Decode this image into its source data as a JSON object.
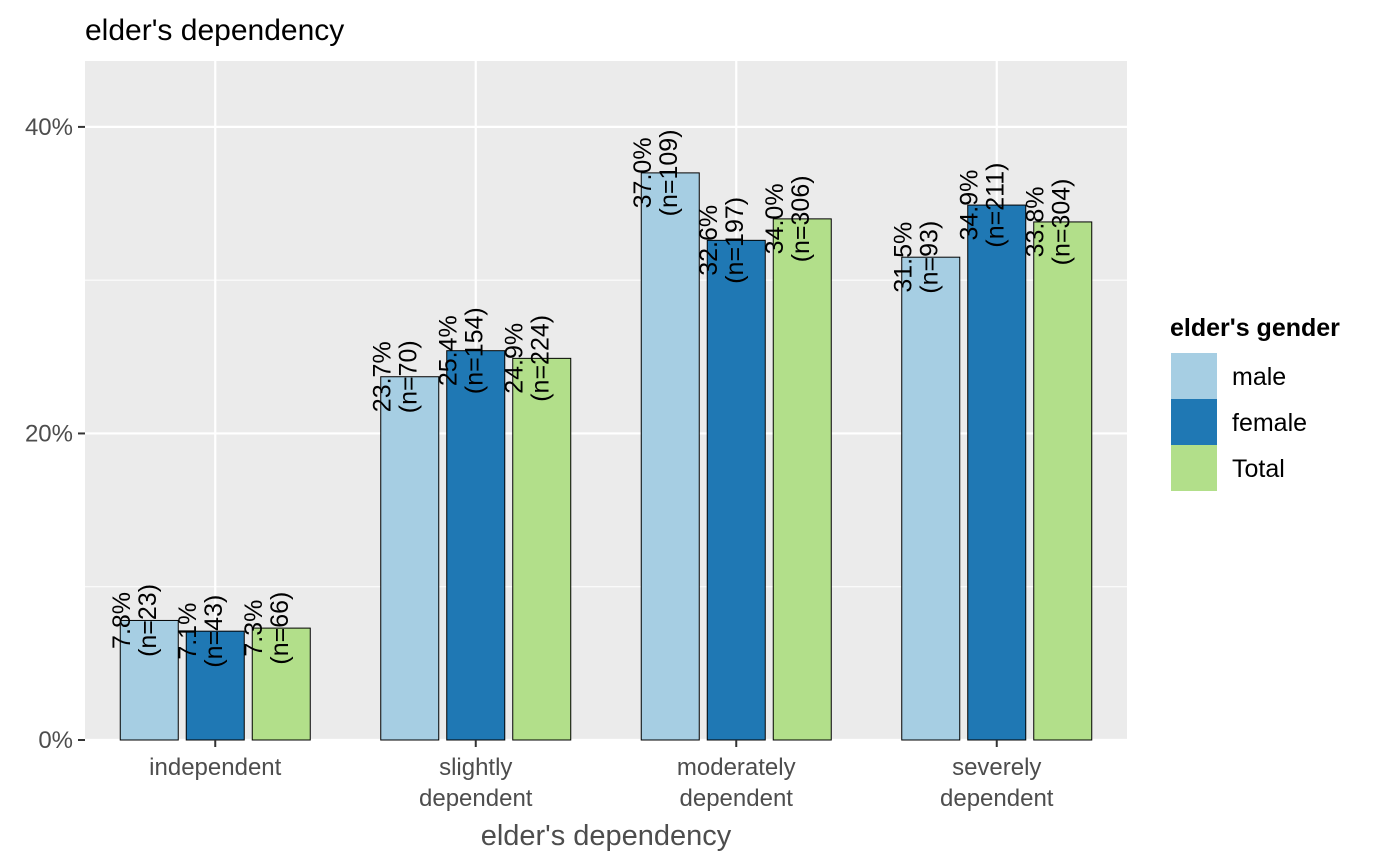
{
  "chart_data": {
    "type": "bar",
    "title": "elder's dependency",
    "xlabel": "elder's dependency",
    "ylabel": "",
    "categories": [
      [
        "independent"
      ],
      [
        "slightly",
        "dependent"
      ],
      [
        "moderately",
        "dependent"
      ],
      [
        "severely",
        "dependent"
      ]
    ],
    "ylim": [
      0,
      44.3
    ],
    "yticks": [
      0,
      20,
      40
    ],
    "ytick_labels": [
      "0%",
      "20%",
      "40%"
    ],
    "grid": true,
    "legend": {
      "title": "elder's gender",
      "position": "right"
    },
    "series": [
      {
        "name": "male",
        "color": "#a6cee3",
        "values": [
          7.8,
          23.7,
          37.0,
          31.5
        ],
        "pct_labels": [
          "7.8%",
          "23.7%",
          "37.0%",
          "31.5%"
        ],
        "n_labels": [
          "(n=23)",
          "(n=70)",
          "(n=109)",
          "(n=93)"
        ]
      },
      {
        "name": "female",
        "color": "#1f78b4",
        "values": [
          7.1,
          25.4,
          32.6,
          34.9
        ],
        "pct_labels": [
          "7.1%",
          "25.4%",
          "32.6%",
          "34.9%"
        ],
        "n_labels": [
          "(n=43)",
          "(n=154)",
          "(n=197)",
          "(n=211)"
        ]
      },
      {
        "name": "Total",
        "color": "#b2df8a",
        "values": [
          7.3,
          24.9,
          34.0,
          33.8
        ],
        "pct_labels": [
          "7.3%",
          "24.9%",
          "34.0%",
          "33.8%"
        ],
        "n_labels": [
          "(n=66)",
          "(n=224)",
          "(n=306)",
          "(n=304)"
        ]
      }
    ]
  }
}
